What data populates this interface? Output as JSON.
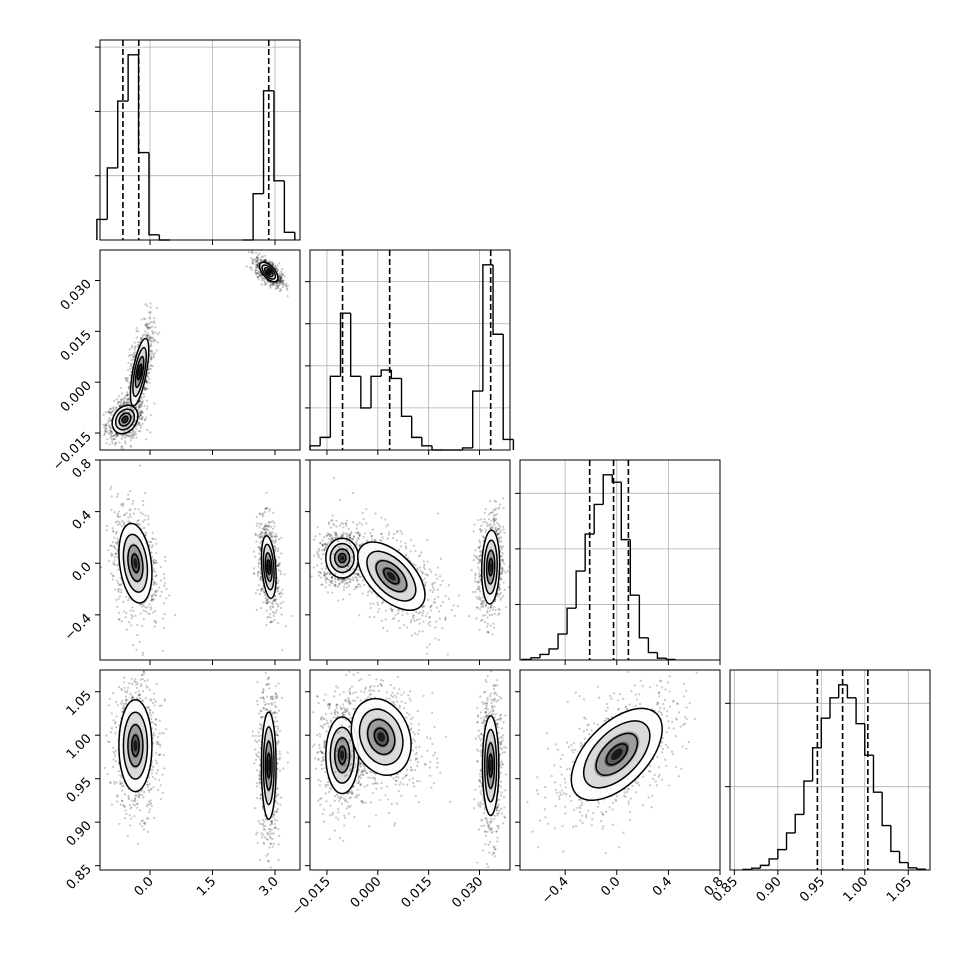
{
  "chart_data": {
    "type": "corner",
    "parameters": [
      {
        "ticks": [
          "0.0",
          "1.5",
          "3.0"
        ],
        "range": [
          -1.2,
          3.6
        ],
        "tick_values": [
          0.0,
          1.5,
          3.0
        ]
      },
      {
        "ticks": [
          "−0.015",
          "0.000",
          "0.015",
          "0.030"
        ],
        "range": [
          -0.02,
          0.039
        ],
        "tick_values": [
          -0.015,
          0.0,
          0.015,
          0.03
        ]
      },
      {
        "ticks": [
          "−0.4",
          "0.0",
          "0.4",
          "0.8"
        ],
        "range": [
          -0.75,
          0.8
        ],
        "tick_values": [
          -0.4,
          0.0,
          0.4,
          0.8
        ]
      },
      {
        "ticks": [
          "0.85",
          "0.90",
          "0.95",
          "1.00",
          "1.05"
        ],
        "range": [
          0.845,
          1.075
        ],
        "tick_values": [
          0.85,
          0.9,
          0.95,
          1.0,
          1.05
        ]
      }
    ],
    "diagonal_histograms": [
      {
        "param": 0,
        "quantiles": [
          -0.65,
          -0.27,
          2.85
        ],
        "bins": [
          -1.15,
          -0.9,
          -0.65,
          -0.4,
          -0.15,
          0.1,
          0.35,
          2.35,
          2.6,
          2.85,
          3.1,
          3.35
        ],
        "counts": [
          0.08,
          0.28,
          0.54,
          0.72,
          0.34,
          0.02,
          0.0,
          0.0,
          0.18,
          0.58,
          0.23,
          0.03
        ],
        "grid_levels": [
          0.25,
          0.5,
          0.75
        ]
      },
      {
        "param": 1,
        "quantiles": [
          -0.0104,
          0.0035,
          0.0333
        ],
        "bins": [
          -0.0185,
          -0.0155,
          -0.0125,
          -0.0095,
          -0.0065,
          -0.0035,
          -0.0005,
          0.0025,
          0.0055,
          0.0085,
          0.0115,
          0.0145,
          0.0175,
          0.0205,
          0.0235,
          0.0265,
          0.0295,
          0.0325,
          0.0355,
          0.0385
        ],
        "counts": [
          0.02,
          0.06,
          0.35,
          0.65,
          0.35,
          0.2,
          0.35,
          0.38,
          0.34,
          0.16,
          0.06,
          0.02,
          0.0,
          0.0,
          0.0,
          0.01,
          0.28,
          0.88,
          0.55,
          0.05
        ],
        "grid_levels": [
          0.2,
          0.4,
          0.6,
          0.8
        ]
      },
      {
        "param": 2,
        "quantiles": [
          -0.21,
          -0.025,
          0.09
        ],
        "bins": [
          -0.7,
          -0.63,
          -0.56,
          -0.49,
          -0.42,
          -0.35,
          -0.28,
          -0.21,
          -0.14,
          -0.07,
          0.0,
          0.07,
          0.14,
          0.21,
          0.28,
          0.35,
          0.42
        ],
        "counts": [
          0.003,
          0.012,
          0.03,
          0.06,
          0.14,
          0.28,
          0.48,
          0.68,
          0.84,
          1.0,
          0.96,
          0.65,
          0.35,
          0.12,
          0.04,
          0.01,
          0.003
        ],
        "grid_levels": [
          0.3,
          0.6,
          0.9
        ]
      },
      {
        "param": 3,
        "quantiles": [
          0.9455,
          0.9745,
          1.0035
        ],
        "bins": [
          0.865,
          0.875,
          0.885,
          0.895,
          0.905,
          0.915,
          0.925,
          0.935,
          0.945,
          0.955,
          0.965,
          0.975,
          0.985,
          0.995,
          1.005,
          1.015,
          1.025,
          1.035,
          1.045,
          1.055,
          1.065
        ],
        "counts": [
          0.003,
          0.01,
          0.025,
          0.06,
          0.11,
          0.2,
          0.3,
          0.48,
          0.66,
          0.82,
          0.93,
          1.0,
          0.93,
          0.79,
          0.62,
          0.42,
          0.24,
          0.1,
          0.04,
          0.012,
          0.004
        ],
        "grid_levels": [
          0.45,
          0.9
        ]
      }
    ],
    "panels_2d": [
      {
        "x": 0,
        "y": 1,
        "modes": [
          {
            "cx": -0.6,
            "cy": -0.011,
            "sx": 0.14,
            "sy": 0.0019,
            "rho": 0.25
          },
          {
            "cx": -0.25,
            "cy": 0.003,
            "sx": 0.1,
            "sy": 0.0045,
            "rho": 0.65
          },
          {
            "cx": 2.85,
            "cy": 0.0325,
            "sx": 0.1,
            "sy": 0.0013,
            "rho": -0.6
          }
        ]
      },
      {
        "x": 0,
        "y": 2,
        "modes": [
          {
            "cx": -0.35,
            "cy": 0.0,
            "sx": 0.18,
            "sy": 0.14,
            "rho": -0.25
          },
          {
            "cx": 2.85,
            "cy": -0.03,
            "sx": 0.08,
            "sy": 0.11,
            "rho": -0.3
          }
        ]
      },
      {
        "x": 0,
        "y": 3,
        "modes": [
          {
            "cx": -0.35,
            "cy": 0.988,
            "sx": 0.18,
            "sy": 0.024,
            "rho": 0.0
          },
          {
            "cx": 2.85,
            "cy": 0.965,
            "sx": 0.08,
            "sy": 0.028,
            "rho": 0.0
          }
        ]
      },
      {
        "x": 1,
        "y": 2,
        "modes": [
          {
            "cx": -0.0105,
            "cy": 0.04,
            "sx": 0.0022,
            "sy": 0.07,
            "rho": 0.0
          },
          {
            "cx": 0.004,
            "cy": -0.1,
            "sx": 0.0045,
            "sy": 0.12,
            "rho": -0.55
          },
          {
            "cx": 0.0333,
            "cy": -0.03,
            "sx": 0.0012,
            "sy": 0.13,
            "rho": 0.1
          }
        ]
      },
      {
        "x": 1,
        "y": 3,
        "modes": [
          {
            "cx": -0.0105,
            "cy": 0.977,
            "sx": 0.0022,
            "sy": 0.02,
            "rho": 0.0
          },
          {
            "cx": 0.001,
            "cy": 0.998,
            "sx": 0.004,
            "sy": 0.02,
            "rho": -0.2
          },
          {
            "cx": 0.0333,
            "cy": 0.965,
            "sx": 0.0011,
            "sy": 0.026,
            "rho": 0.0
          }
        ]
      },
      {
        "x": 2,
        "y": 3,
        "modes": [
          {
            "cx": 0.0,
            "cy": 0.978,
            "sx": 0.16,
            "sy": 0.024,
            "rho": 0.55
          }
        ]
      }
    ],
    "grid": true,
    "xlabels": [],
    "ylabels": []
  }
}
